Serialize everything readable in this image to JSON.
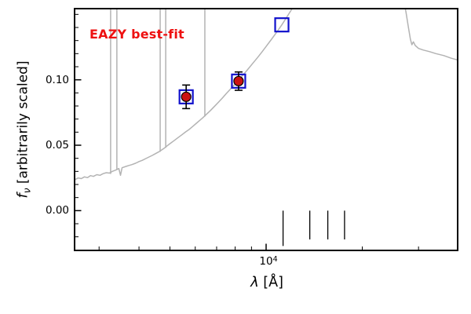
{
  "figure": {
    "annotation": "EAZY best-fit",
    "ylabel": {
      "symbol": "f",
      "subscript": "ν",
      "rest": " [arbitrarily scaled]"
    },
    "xlabel": {
      "symbol": "λ",
      "rest": " [Å]"
    },
    "xtick_label": {
      "base": "10",
      "exponent": "4"
    },
    "ytick_labels": [
      "0.00",
      "0.05",
      "0.10"
    ],
    "colors": {
      "annotation": "#ee1111",
      "spectrum": "#b3b3b3",
      "square": "#1111cc",
      "point_fill": "#cc1111",
      "point_edge": "#000000",
      "errorbar": "#000000",
      "axis": "#000000",
      "background": "#ffffff"
    }
  },
  "chart_data": {
    "type": "line",
    "title": "",
    "xlabel": "λ [Å]",
    "ylabel": "f_ν [arbitrarily scaled]",
    "annotation": "EAZY best-fit",
    "x_scale": "log",
    "xlim": [
      2500,
      40000
    ],
    "ylim": [
      -0.031,
      0.155
    ],
    "xticks_major": [
      10000
    ],
    "xticks_minor": [
      3000,
      4000,
      5000,
      6000,
      7000,
      8000,
      9000,
      20000,
      30000
    ],
    "yticks_major": [
      0.0,
      0.05,
      0.1
    ],
    "ytick_minor_step": 0.01,
    "legend": "none",
    "series": {
      "bestfit_spectrum": {
        "name": "EAZY best-fit model spectrum",
        "points": [
          [
            2512,
            0.0235
          ],
          [
            2580,
            0.025
          ],
          [
            2640,
            0.0245
          ],
          [
            2700,
            0.0258
          ],
          [
            2760,
            0.0252
          ],
          [
            2820,
            0.0268
          ],
          [
            2880,
            0.0262
          ],
          [
            2950,
            0.0275
          ],
          [
            3020,
            0.027
          ],
          [
            3090,
            0.0283
          ],
          [
            3160,
            0.029
          ],
          [
            3230,
            0.0287
          ],
          [
            3300,
            0.03
          ],
          [
            3380,
            0.031
          ],
          [
            3460,
            0.0322
          ],
          [
            3500,
            0.027
          ],
          [
            3540,
            0.0328
          ],
          [
            3640,
            0.0338
          ],
          [
            3720,
            0.0345
          ],
          [
            3800,
            0.0352
          ],
          [
            3900,
            0.0362
          ],
          [
            4000,
            0.0375
          ],
          [
            4100,
            0.0385
          ],
          [
            4200,
            0.0398
          ],
          [
            4300,
            0.041
          ],
          [
            4400,
            0.0422
          ],
          [
            4500,
            0.0435
          ],
          [
            4600,
            0.0448
          ],
          [
            4700,
            0.0462
          ],
          [
            4800,
            0.0478
          ],
          [
            4900,
            0.0495
          ],
          [
            5000,
            0.0512
          ],
          [
            5150,
            0.0535
          ],
          [
            5300,
            0.0558
          ],
          [
            5450,
            0.058
          ],
          [
            5600,
            0.0602
          ],
          [
            5750,
            0.0622
          ],
          [
            5900,
            0.0645
          ],
          [
            6050,
            0.0668
          ],
          [
            6200,
            0.069
          ],
          [
            6350,
            0.0712
          ],
          [
            6500,
            0.0736
          ],
          [
            6700,
            0.0766
          ],
          [
            6900,
            0.0798
          ],
          [
            7100,
            0.083
          ],
          [
            7300,
            0.0862
          ],
          [
            7500,
            0.0895
          ],
          [
            7750,
            0.0932
          ],
          [
            8000,
            0.0968
          ],
          [
            8250,
            0.1005
          ],
          [
            8500,
            0.1042
          ],
          [
            8800,
            0.1085
          ],
          [
            9100,
            0.1128
          ],
          [
            9400,
            0.117
          ],
          [
            9700,
            0.1212
          ],
          [
            10000,
            0.1255
          ],
          [
            10400,
            0.131
          ],
          [
            10800,
            0.1365
          ],
          [
            11200,
            0.142
          ],
          [
            11600,
            0.1478
          ],
          [
            12000,
            0.1535
          ],
          [
            12500,
            0.16
          ],
          [
            13000,
            0.166
          ],
          [
            14000,
            0.178
          ],
          [
            15000,
            0.188
          ],
          [
            17000,
            0.198
          ],
          [
            19000,
            0.202
          ],
          [
            21000,
            0.201
          ],
          [
            23000,
            0.195
          ],
          [
            25000,
            0.184
          ],
          [
            26000,
            0.175
          ],
          [
            26800,
            0.164
          ],
          [
            27400,
            0.152
          ],
          [
            27900,
            0.14
          ],
          [
            28300,
            0.131
          ],
          [
            28600,
            0.1268
          ],
          [
            28900,
            0.129
          ],
          [
            29300,
            0.1262
          ],
          [
            30000,
            0.124
          ],
          [
            31000,
            0.1228
          ],
          [
            32500,
            0.1215
          ],
          [
            34000,
            0.12
          ],
          [
            36000,
            0.1185
          ],
          [
            38000,
            0.1165
          ],
          [
            40000,
            0.115
          ]
        ]
      },
      "emission_lines": [
        [
          3260,
          0.028,
          0.2
        ],
        [
          3410,
          0.031,
          0.2
        ],
        [
          4660,
          0.045,
          0.2
        ],
        [
          4850,
          0.048,
          0.2
        ],
        [
          6430,
          0.072,
          0.2
        ]
      ],
      "observed_photometry": [
        {
          "lambda": 5620,
          "flux": 0.087,
          "flux_err": 0.009
        },
        {
          "lambda": 8200,
          "flux": 0.099,
          "flux_err": 0.007
        }
      ],
      "model_photometry": [
        {
          "lambda": 5620,
          "flux": 0.087
        },
        {
          "lambda": 8200,
          "flux": 0.099
        },
        {
          "lambda": 11200,
          "flux": 0.142
        }
      ],
      "zero_flux_markers": [
        {
          "lambda": 11300,
          "top": 0.0,
          "bottom": -0.027
        },
        {
          "lambda": 13700,
          "top": 0.0,
          "bottom": -0.022
        },
        {
          "lambda": 15600,
          "top": 0.0,
          "bottom": -0.022
        },
        {
          "lambda": 17600,
          "top": 0.0,
          "bottom": -0.022
        }
      ]
    }
  }
}
